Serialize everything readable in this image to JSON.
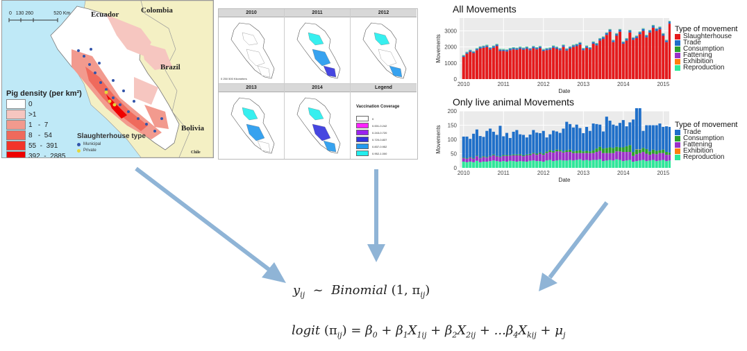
{
  "map": {
    "countries": [
      "Ecuador",
      "Colombia",
      "Brazil",
      "Bolivia",
      "Chile"
    ],
    "scale_labels": [
      "0",
      "130 260",
      "520 Km"
    ],
    "density_legend_title": "Pig density (per km²)",
    "density_legend": [
      {
        "label": "0",
        "color": "#ffffff"
      },
      {
        "label": ">1",
        "color": "#f6c6c0"
      },
      {
        "label": "1   -  7",
        "color": "#f29a8e"
      },
      {
        "label": "8   -  54",
        "color": "#ef6a5c"
      },
      {
        "label": "55  -  391",
        "color": "#f2342a"
      },
      {
        "label": "392  -  2885",
        "color": "#ee0000"
      }
    ],
    "slaughterhouse_title": "Slaughterhouse type",
    "slaughterhouse_types": [
      {
        "label": "Municipal",
        "color": "#3355aa"
      },
      {
        "label": "Private",
        "color": "#e5d73a"
      }
    ]
  },
  "vaccination": {
    "years": [
      "2010",
      "2011",
      "2012",
      "2013",
      "2014"
    ],
    "legend_header": "Legend",
    "legend_title": "Vaccination Coverage",
    "scale_text": "0   250  500 Kilometers",
    "classes": [
      {
        "label": "0",
        "color": "#ffffff"
      },
      {
        "label": "0.001-0.242",
        "color": "#ff22ff"
      },
      {
        "label": "0.243-0.720",
        "color": "#9a22ee"
      },
      {
        "label": "0.720-0.837",
        "color": "#3333dd"
      },
      {
        "label": "0.837-0.952",
        "color": "#2299ee"
      },
      {
        "label": "0.952-1.000",
        "color": "#22eeee"
      }
    ]
  },
  "charts": {
    "all": {
      "title": "All Movements",
      "legend_title": "Type of movement",
      "legend": [
        {
          "label": "Slaughterhouse",
          "color": "#e41a1c"
        },
        {
          "label": "Trade",
          "color": "#1f6fc9"
        },
        {
          "label": "Consumption",
          "color": "#2ca02c"
        },
        {
          "label": "Fattening",
          "color": "#9b30c9"
        },
        {
          "label": "Exhibition",
          "color": "#ff7f0e"
        },
        {
          "label": "Reproduction",
          "color": "#2ee89a"
        }
      ],
      "ylabel": "Movements",
      "xlabel": "Date",
      "yticks": [
        "0",
        "1000",
        "2000",
        "3000"
      ],
      "xticks": [
        "2010",
        "2011",
        "2012",
        "2013",
        "2014",
        "2015"
      ]
    },
    "live": {
      "title": "Only live animal Movements",
      "legend_title": "Type of movement",
      "legend": [
        {
          "label": "Trade",
          "color": "#1f6fc9"
        },
        {
          "label": "Consumption",
          "color": "#2ca02c"
        },
        {
          "label": "Fattening",
          "color": "#9b30c9"
        },
        {
          "label": "Exhibition",
          "color": "#ff7f0e"
        },
        {
          "label": "Reproduction",
          "color": "#2ee89a"
        }
      ],
      "ylabel": "Movements",
      "xlabel": "Date",
      "yticks": [
        "0",
        "50",
        "100",
        "150",
        "200"
      ],
      "xticks": [
        "2010",
        "2011",
        "2012",
        "2013",
        "2014",
        "2015"
      ]
    }
  },
  "chart_data": [
    {
      "type": "bar",
      "title": "All Movements",
      "xlabel": "Date",
      "ylabel": "Movements",
      "ylim": [
        0,
        3800
      ],
      "x_start": 2010.0,
      "x_step": 0.0833,
      "series": [
        {
          "name": "Slaughterhouse",
          "values": [
            1380,
            1580,
            1700,
            1620,
            1800,
            1900,
            1950,
            2000,
            1850,
            1950,
            2050,
            1750,
            1750,
            1720,
            1800,
            1850,
            1820,
            1880,
            1830,
            1890,
            1800,
            1920,
            1850,
            1920,
            1750,
            1800,
            1830,
            1950,
            1880,
            1800,
            2000,
            1780,
            1900,
            2000,
            2050,
            2150,
            1800,
            1950,
            1850,
            2200,
            2100,
            2400,
            2500,
            2750,
            2950,
            2300,
            2700,
            2950,
            2200,
            2400,
            2900,
            2450,
            2550,
            2800,
            3000,
            2600,
            2900,
            3200,
            3000,
            3100,
            2700,
            2300,
            3450
          ]
        },
        {
          "name": "Trade",
          "values": [
            60,
            65,
            70,
            60,
            70,
            80,
            75,
            80,
            70,
            80,
            85,
            75,
            70,
            70,
            80,
            80,
            75,
            80,
            75,
            80,
            75,
            85,
            80,
            85,
            70,
            75,
            80,
            85,
            80,
            75,
            90,
            75,
            80,
            85,
            90,
            95,
            80,
            85,
            80,
            90,
            90,
            95,
            100,
            100,
            110,
            90,
            100,
            110,
            90,
            95,
            110,
            95,
            100,
            105,
            110,
            100,
            105,
            115,
            110,
            110,
            100,
            90,
            120
          ]
        },
        {
          "name": "Consumption",
          "values": [
            10,
            10,
            10,
            10,
            10,
            10,
            10,
            10,
            10,
            10,
            10,
            10,
            10,
            10,
            10,
            10,
            10,
            10,
            10,
            10,
            10,
            10,
            10,
            10,
            10,
            10,
            10,
            10,
            10,
            10,
            10,
            10,
            10,
            10,
            10,
            10,
            10,
            10,
            10,
            10,
            10,
            10,
            10,
            10,
            10,
            10,
            10,
            10,
            10,
            10,
            10,
            10,
            10,
            10,
            10,
            10,
            10,
            10,
            10,
            10,
            10,
            10,
            10
          ]
        },
        {
          "name": "Fattening",
          "values": [
            15,
            15,
            15,
            15,
            15,
            15,
            15,
            15,
            15,
            15,
            15,
            15,
            15,
            15,
            15,
            15,
            15,
            15,
            15,
            15,
            15,
            15,
            15,
            15,
            15,
            15,
            15,
            15,
            15,
            15,
            15,
            15,
            15,
            15,
            15,
            15,
            15,
            15,
            15,
            15,
            15,
            15,
            15,
            15,
            15,
            15,
            15,
            15,
            15,
            15,
            15,
            15,
            15,
            15,
            15,
            15,
            15,
            15,
            15,
            15,
            15,
            15,
            15
          ]
        },
        {
          "name": "Exhibition",
          "values": [
            2,
            2,
            2,
            2,
            2,
            2,
            2,
            2,
            2,
            2,
            2,
            2,
            2,
            2,
            2,
            2,
            2,
            2,
            2,
            2,
            2,
            2,
            2,
            2,
            2,
            2,
            2,
            2,
            2,
            2,
            2,
            2,
            2,
            2,
            2,
            2,
            2,
            2,
            2,
            2,
            2,
            2,
            2,
            2,
            2,
            2,
            2,
            2,
            2,
            2,
            2,
            2,
            2,
            2,
            2,
            2,
            2,
            2,
            2,
            2,
            2,
            2,
            2
          ]
        },
        {
          "name": "Reproduction",
          "values": [
            30,
            30,
            30,
            30,
            30,
            30,
            30,
            30,
            30,
            30,
            30,
            30,
            30,
            30,
            30,
            30,
            30,
            30,
            30,
            30,
            30,
            30,
            30,
            30,
            30,
            30,
            30,
            30,
            30,
            30,
            30,
            30,
            30,
            30,
            30,
            30,
            30,
            30,
            30,
            30,
            30,
            30,
            30,
            30,
            30,
            30,
            30,
            30,
            30,
            30,
            30,
            30,
            30,
            30,
            30,
            30,
            30,
            30,
            30,
            30,
            30,
            30,
            30
          ]
        }
      ]
    },
    {
      "type": "bar",
      "title": "Only live animal Movements",
      "xlabel": "Date",
      "ylabel": "Movements",
      "ylim": [
        0,
        200
      ],
      "x_start": 2010.0,
      "x_step": 0.0833,
      "series": [
        {
          "name": "Reproduction",
          "values": [
            22,
            20,
            22,
            20,
            25,
            20,
            22,
            22,
            24,
            26,
            24,
            22,
            24,
            22,
            25,
            24,
            22,
            24,
            23,
            22,
            25,
            26,
            24,
            24,
            22,
            26,
            28,
            24,
            26,
            28,
            26,
            26,
            28,
            26,
            28,
            30,
            26,
            28,
            26,
            28,
            28,
            30,
            24,
            26,
            28,
            26,
            30,
            28,
            24,
            26,
            28,
            22,
            24,
            26,
            28,
            24,
            26,
            28,
            24,
            26,
            28,
            24,
            26
          ]
        },
        {
          "name": "Fattening",
          "values": [
            12,
            12,
            14,
            12,
            16,
            14,
            16,
            14,
            16,
            18,
            16,
            16,
            18,
            20,
            18,
            20,
            22,
            20,
            18,
            22,
            20,
            24,
            22,
            26,
            24,
            26,
            28,
            30,
            32,
            30,
            28,
            30,
            28,
            26,
            24,
            22,
            26,
            24,
            26,
            24,
            28,
            30,
            28,
            26,
            24,
            26,
            28,
            30,
            32,
            30,
            28,
            20,
            24,
            26,
            28,
            26,
            20,
            22,
            24,
            26,
            24,
            22,
            20
          ]
        },
        {
          "name": "Consumption",
          "values": [
            2,
            2,
            2,
            2,
            2,
            2,
            3,
            2,
            2,
            3,
            2,
            2,
            3,
            3,
            2,
            3,
            3,
            4,
            3,
            3,
            4,
            3,
            4,
            4,
            4,
            5,
            6,
            5,
            6,
            5,
            4,
            6,
            8,
            6,
            8,
            10,
            6,
            8,
            6,
            10,
            12,
            14,
            16,
            18,
            20,
            18,
            16,
            14,
            16,
            20,
            24,
            14,
            16,
            12,
            14,
            16,
            12,
            14,
            12,
            10,
            12,
            10,
            8
          ]
        },
        {
          "name": "Exhibition",
          "values": [
            0,
            0,
            0,
            0,
            0,
            0,
            0,
            0,
            0,
            0,
            0,
            0,
            0,
            0,
            0,
            0,
            0,
            0,
            0,
            0,
            0,
            0,
            0,
            0,
            0,
            0,
            0,
            0,
            0,
            0,
            0,
            0,
            0,
            0,
            0,
            0,
            0,
            0,
            0,
            0,
            0,
            0,
            0,
            0,
            0,
            0,
            0,
            0,
            0,
            0,
            0,
            0,
            1,
            1,
            0,
            0,
            0,
            0,
            0,
            0,
            0,
            0,
            0
          ]
        },
        {
          "name": "Trade",
          "values": [
            74,
            76,
            64,
            86,
            92,
            76,
            68,
            92,
            96,
            80,
            74,
            108,
            66,
            78,
            60,
            80,
            86,
            70,
            72,
            60,
            68,
            80,
            74,
            68,
            80,
            50,
            56,
            72,
            64,
            60,
            80,
            100,
            90,
            84,
            92,
            78,
            64,
            84,
            72,
            94,
            86,
            78,
            60,
            110,
            94,
            82,
            74,
            86,
            96,
            70,
            80,
            114,
            150,
            150,
            60,
            84,
            92,
            86,
            90,
            94,
            80,
            90,
            90
          ]
        }
      ]
    }
  ],
  "formulas": {
    "model_lhs": "y",
    "model_lhs_sub": "ij",
    "model_tilde": "~",
    "model_dist": "Binomial",
    "model_args": "(1,  π",
    "model_args_sub": "ij",
    "model_args_close": ")",
    "logit_fn": "logit",
    "logit_arg": "(π",
    "logit_arg_sub": "ij",
    "logit_arg_close": ")",
    "eq": "=",
    "t_b0": "β",
    "t_b0_sub": "0",
    "plus": "+",
    "t_b1": "β",
    "t_b1_sub": "1",
    "t_x1": "X",
    "t_x1_sub": "1ij",
    "t_b2": "β",
    "t_b2_sub": "2",
    "t_x2": "X",
    "t_x2_sub": "2ij",
    "t_dots": "...β",
    "t_b4_sub": "4",
    "t_xk": "X",
    "t_xk_sub": "kij",
    "t_mu": "μ",
    "t_mu_sub": "j"
  }
}
